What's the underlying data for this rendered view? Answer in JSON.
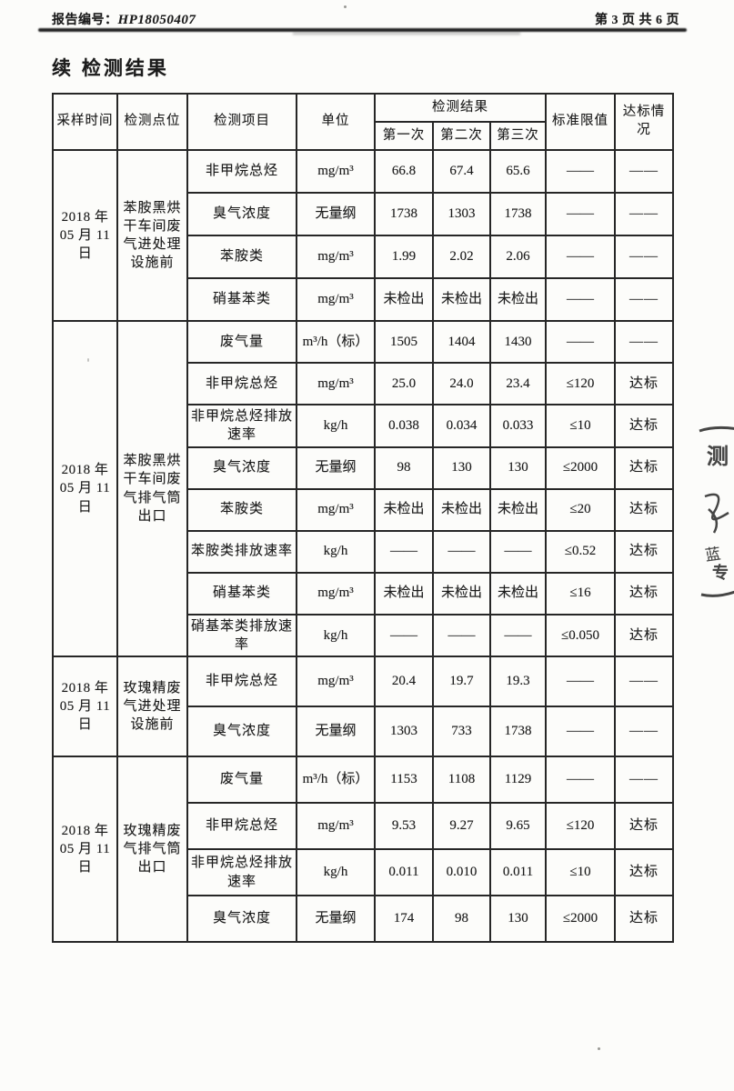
{
  "page": {
    "report_label": "报告编号：",
    "report_number": "HP18050407",
    "page_info": "第 3 页 共 6 页",
    "title": "续 检测结果"
  },
  "table": {
    "headers": {
      "col_time": "采样时间",
      "col_location": "检测点位",
      "col_item": "检测项目",
      "col_unit": "单位",
      "col_results": "检测结果",
      "col_r1": "第一次",
      "col_r2": "第二次",
      "col_r3": "第三次",
      "col_limit": "标准限值",
      "col_status": "达标情况"
    },
    "blocks": [
      {
        "time_line1": "2018 年",
        "time_line2": "05 月 11 日",
        "location": "苯胺黑烘干车间废气进处理设施前",
        "rows": [
          {
            "item": "非甲烷总烃",
            "unit": "mg/m³",
            "r1": "66.8",
            "r2": "67.4",
            "r3": "65.6",
            "limit": "——",
            "status": "——"
          },
          {
            "item": "臭气浓度",
            "unit": "无量纲",
            "r1": "1738",
            "r2": "1303",
            "r3": "1738",
            "limit": "——",
            "status": "——"
          },
          {
            "item": "苯胺类",
            "unit": "mg/m³",
            "r1": "1.99",
            "r2": "2.02",
            "r3": "2.06",
            "limit": "——",
            "status": "——"
          },
          {
            "item": "硝基苯类",
            "unit": "mg/m³",
            "r1": "未检出",
            "r2": "未检出",
            "r3": "未检出",
            "limit": "——",
            "status": "——"
          }
        ]
      },
      {
        "time_line1": "2018 年",
        "time_line2": "05 月 11 日",
        "location": "苯胺黑烘干车间废气排气筒出口",
        "rows": [
          {
            "item": "废气量",
            "unit": "m³/h（标）",
            "r1": "1505",
            "r2": "1404",
            "r3": "1430",
            "limit": "——",
            "status": "——"
          },
          {
            "item": "非甲烷总烃",
            "unit": "mg/m³",
            "r1": "25.0",
            "r2": "24.0",
            "r3": "23.4",
            "limit": "≤120",
            "status": "达标"
          },
          {
            "item": "非甲烷总烃排放速率",
            "unit": "kg/h",
            "r1": "0.038",
            "r2": "0.034",
            "r3": "0.033",
            "limit": "≤10",
            "status": "达标"
          },
          {
            "item": "臭气浓度",
            "unit": "无量纲",
            "r1": "98",
            "r2": "130",
            "r3": "130",
            "limit": "≤2000",
            "status": "达标"
          },
          {
            "item": "苯胺类",
            "unit": "mg/m³",
            "r1": "未检出",
            "r2": "未检出",
            "r3": "未检出",
            "limit": "≤20",
            "status": "达标"
          },
          {
            "item": "苯胺类排放速率",
            "unit": "kg/h",
            "r1": "——",
            "r2": "——",
            "r3": "——",
            "limit": "≤0.52",
            "status": "达标"
          },
          {
            "item": "硝基苯类",
            "unit": "mg/m³",
            "r1": "未检出",
            "r2": "未检出",
            "r3": "未检出",
            "limit": "≤16",
            "status": "达标"
          },
          {
            "item": "硝基苯类排放速率",
            "unit": "kg/h",
            "r1": "——",
            "r2": "——",
            "r3": "——",
            "limit": "≤0.050",
            "status": "达标"
          }
        ]
      },
      {
        "time_line1": "2018 年",
        "time_line2": "05 月 11 日",
        "location": "玫瑰精废气进处理设施前",
        "rows": [
          {
            "item": "非甲烷总烃",
            "unit": "mg/m³",
            "r1": "20.4",
            "r2": "19.7",
            "r3": "19.3",
            "limit": "——",
            "status": "——"
          },
          {
            "item": "臭气浓度",
            "unit": "无量纲",
            "r1": "1303",
            "r2": "733",
            "r3": "1738",
            "limit": "——",
            "status": "——"
          }
        ]
      },
      {
        "time_line1": "2018 年",
        "time_line2": "05 月 11 日",
        "location": "玫瑰精废气排气筒出口",
        "rows": [
          {
            "item": "废气量",
            "unit": "m³/h（标）",
            "r1": "1153",
            "r2": "1108",
            "r3": "1129",
            "limit": "——",
            "status": "——"
          },
          {
            "item": "非甲烷总烃",
            "unit": "mg/m³",
            "r1": "9.53",
            "r2": "9.27",
            "r3": "9.65",
            "limit": "≤120",
            "status": "达标"
          },
          {
            "item": "非甲烷总烃排放速率",
            "unit": "kg/h",
            "r1": "0.011",
            "r2": "0.010",
            "r3": "0.011",
            "limit": "≤10",
            "status": "达标"
          },
          {
            "item": "臭气浓度",
            "unit": "无量纲",
            "r1": "174",
            "r2": "98",
            "r3": "130",
            "limit": "≤2000",
            "status": "达标"
          }
        ]
      }
    ]
  },
  "stamp": {
    "char_top": "测",
    "char_bottom": "专"
  }
}
